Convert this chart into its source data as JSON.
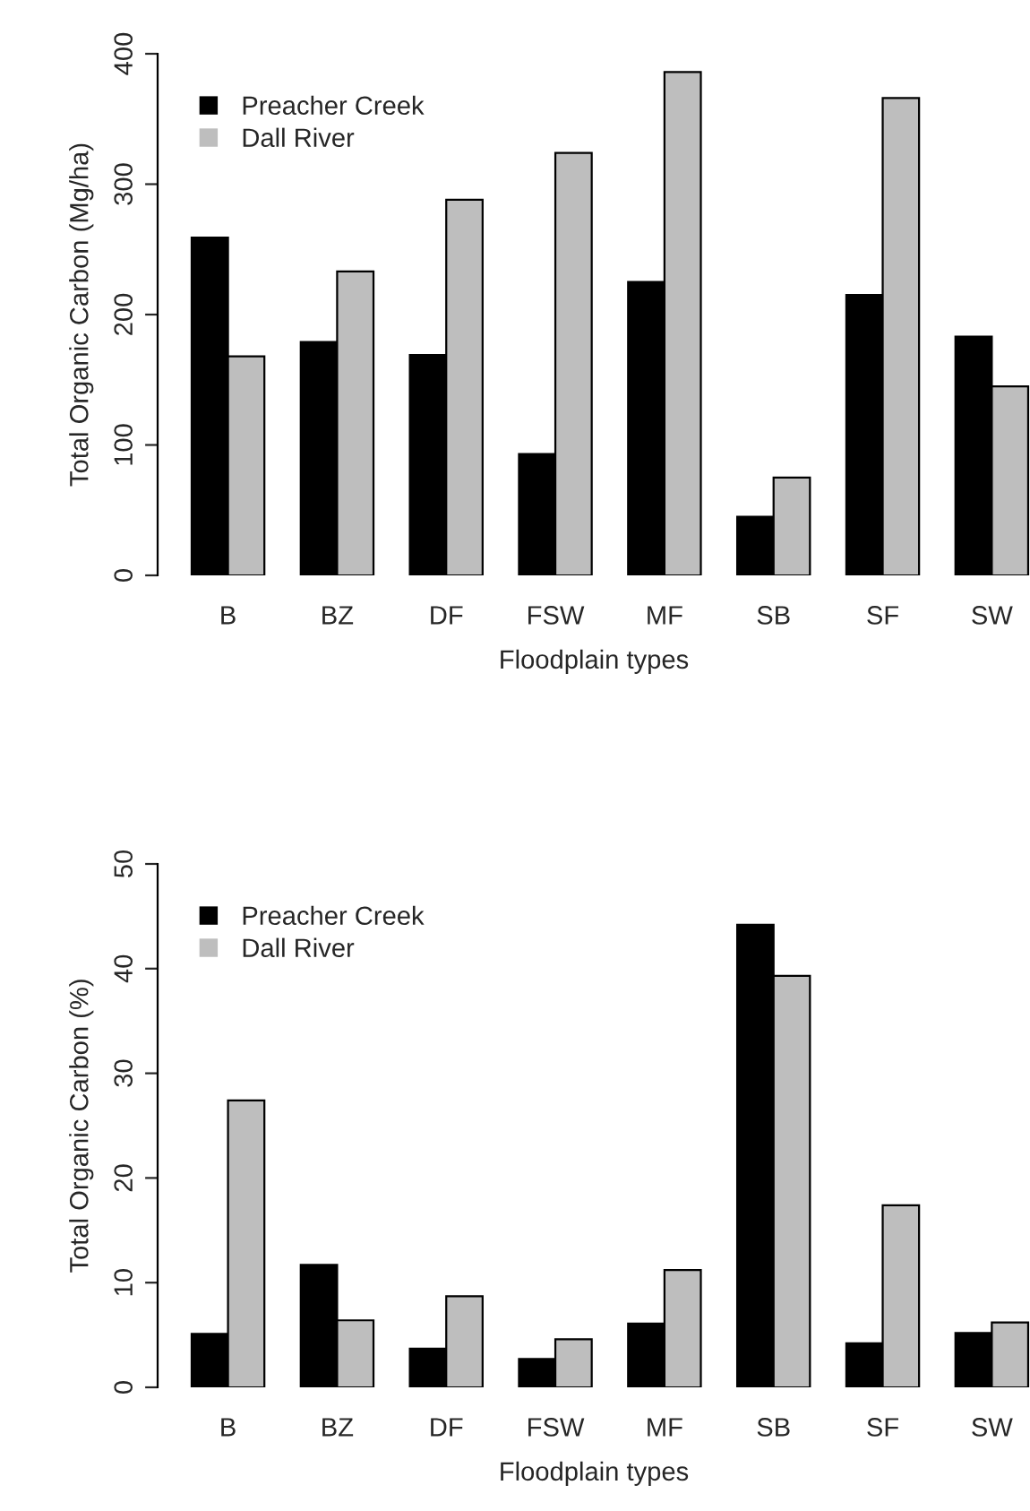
{
  "chart_data": [
    {
      "type": "bar",
      "xlabel": "Floodplain types",
      "ylabel": "Total Organic Carbon (Mg/ha)",
      "categories": [
        "B",
        "BZ",
        "DF",
        "FSW",
        "MF",
        "SB",
        "SF",
        "SW"
      ],
      "series": [
        {
          "name": "Preacher Creek",
          "color": "#000000",
          "values": [
            259,
            179,
            169,
            93,
            225,
            45,
            215,
            183
          ]
        },
        {
          "name": "Dall River",
          "color": "#bebebe",
          "values": [
            168,
            233,
            288,
            324,
            386,
            75,
            366,
            145
          ]
        }
      ],
      "ylim": [
        0,
        400
      ],
      "yticks": [
        0,
        100,
        200,
        300,
        400
      ],
      "legend": "top left",
      "grid": false
    },
    {
      "type": "bar",
      "xlabel": "Floodplain types",
      "ylabel": "Total Organic Carbon (%)",
      "categories": [
        "B",
        "BZ",
        "DF",
        "FSW",
        "MF",
        "SB",
        "SF",
        "SW"
      ],
      "series": [
        {
          "name": "Preacher Creek",
          "color": "#000000",
          "values": [
            5.1,
            11.7,
            3.7,
            2.7,
            6.1,
            44.2,
            4.2,
            5.2
          ]
        },
        {
          "name": "Dall River",
          "color": "#bebebe",
          "values": [
            27.4,
            6.4,
            8.7,
            4.6,
            11.2,
            39.3,
            17.4,
            6.2
          ]
        }
      ],
      "ylim": [
        0,
        50
      ],
      "yticks": [
        0,
        10,
        20,
        30,
        40,
        50
      ],
      "legend": "top left",
      "grid": false
    }
  ]
}
